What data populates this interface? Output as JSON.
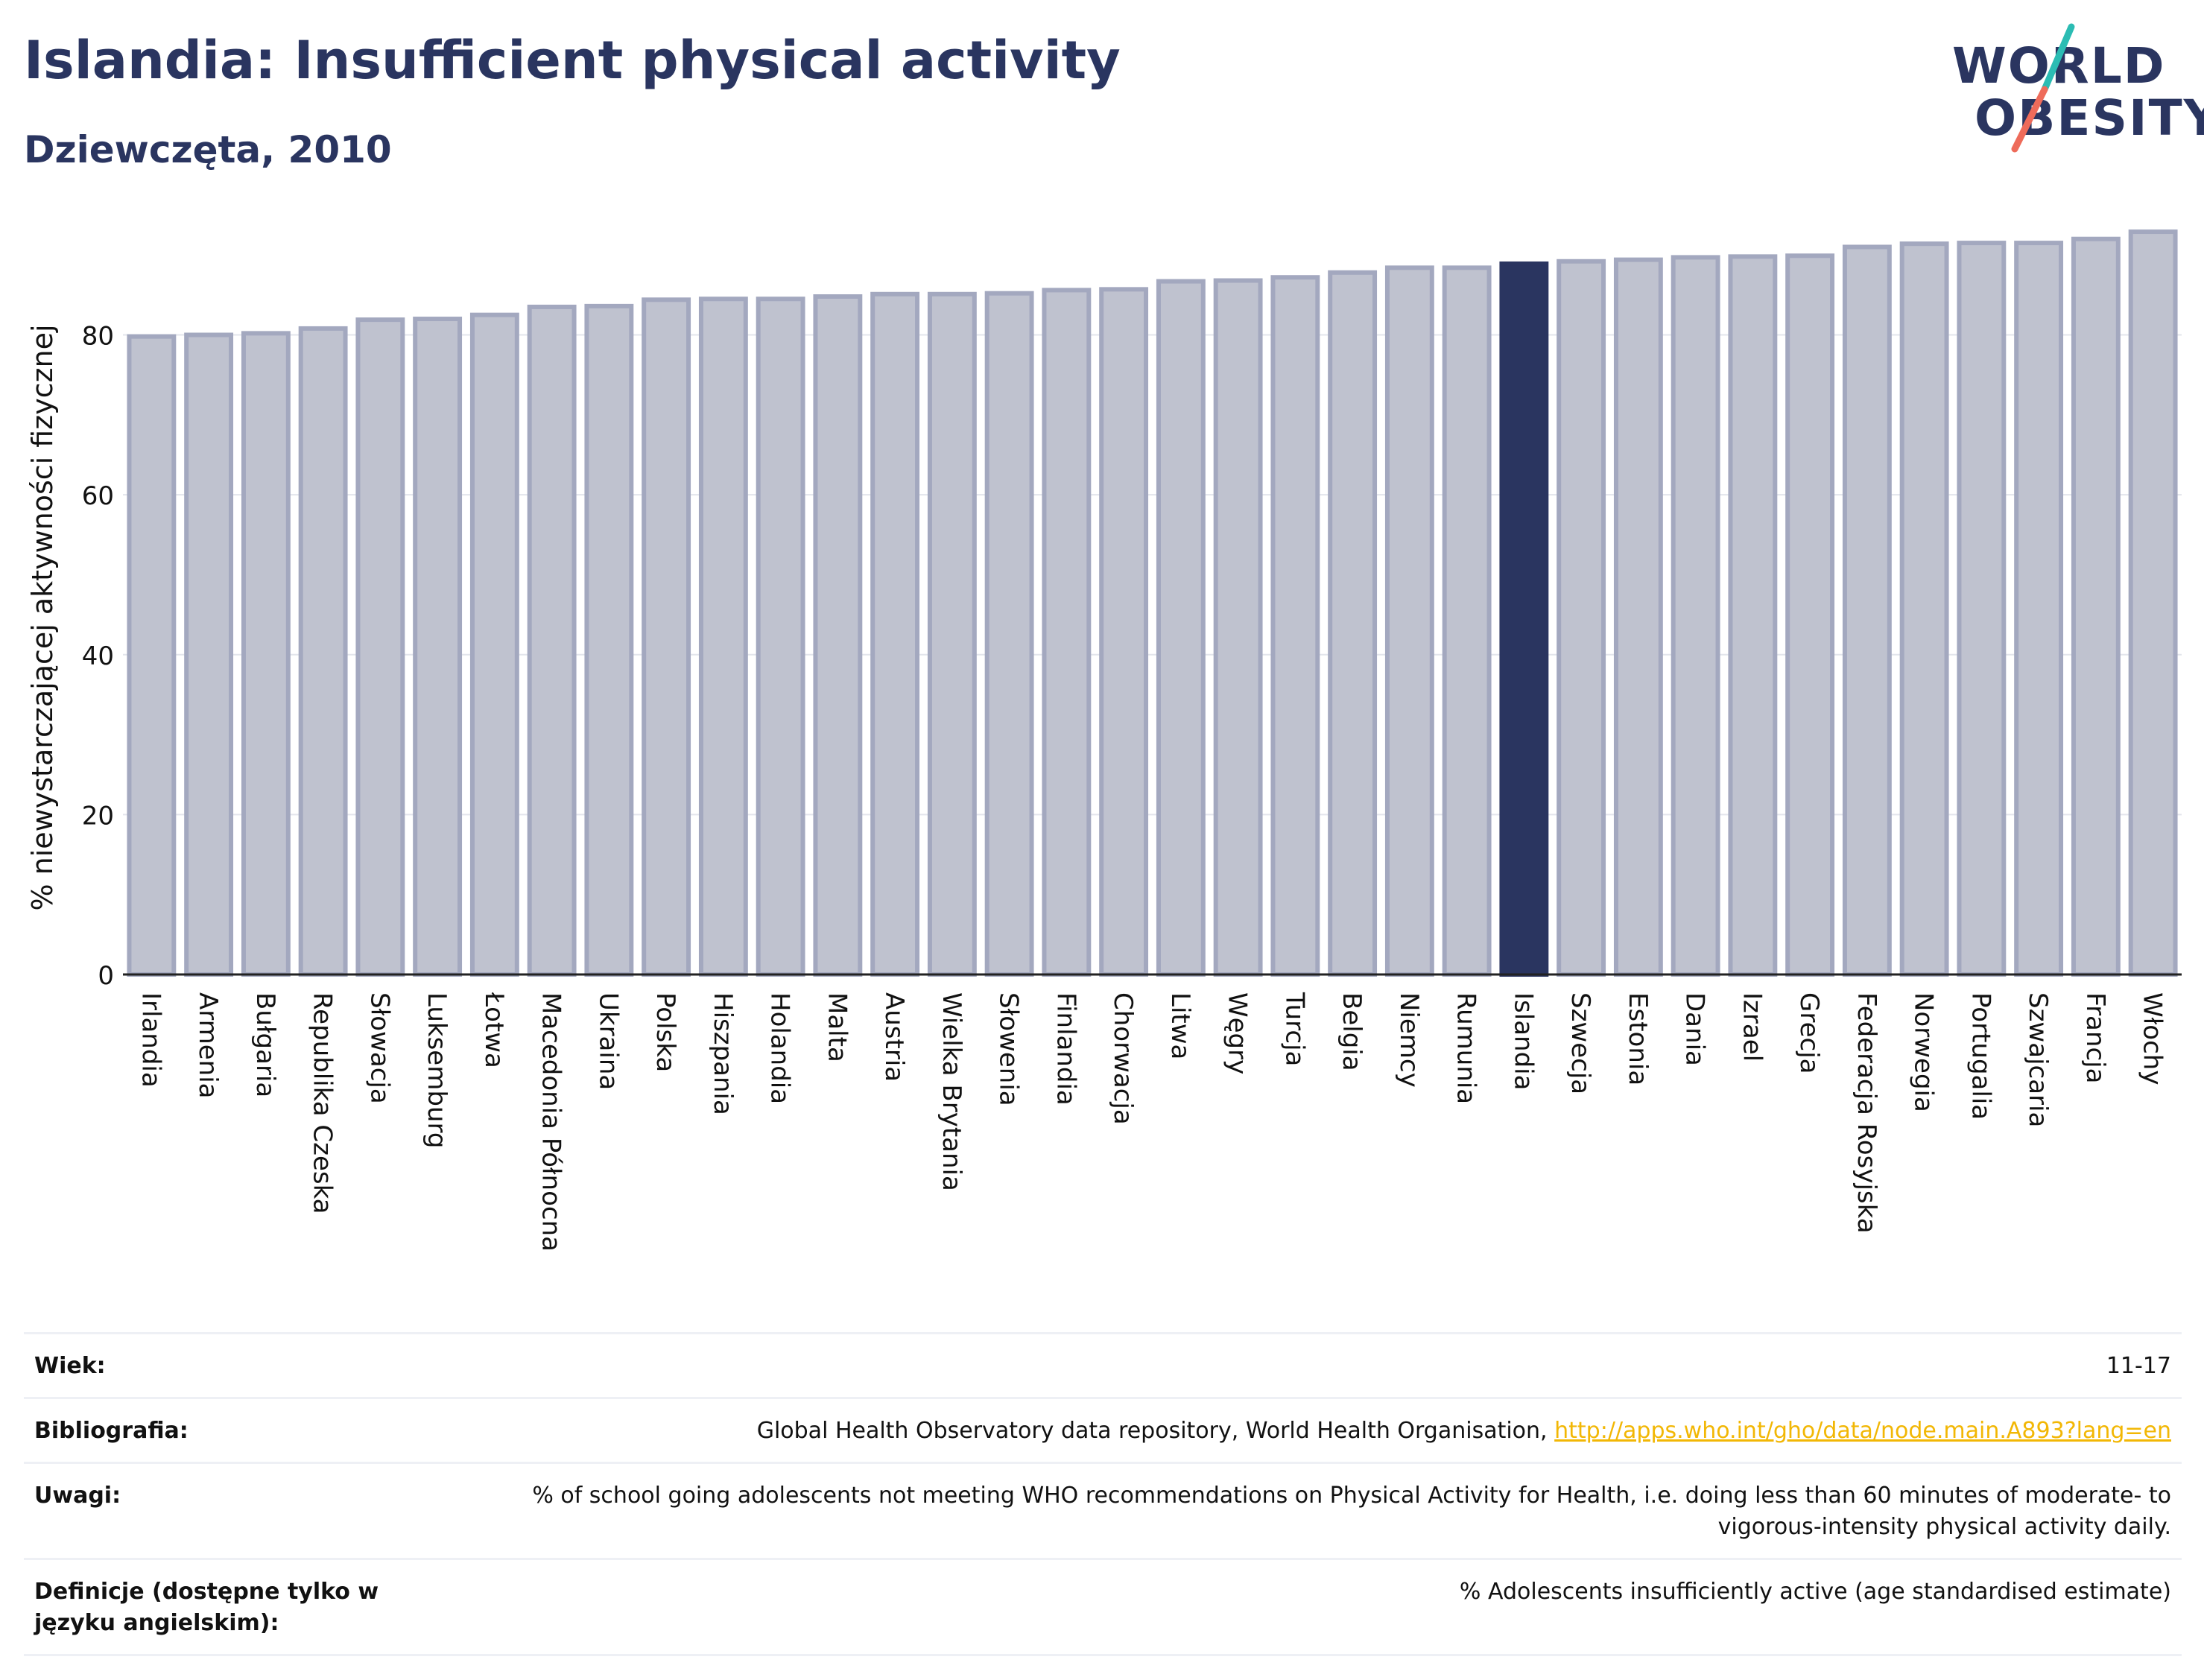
{
  "header": {
    "title": "Islandia: Insufficient physical activity",
    "subtitle": "Dziewczęta, 2010"
  },
  "logo": {
    "line1": "WORLD",
    "line2": "OBESITY"
  },
  "colors": {
    "title": "#2a3560",
    "bar_default_fill": "#bfc2cf",
    "bar_default_stroke": "#a3a8bf",
    "bar_highlight": "#2a3560",
    "link": "#f2b705",
    "logo_teal": "#2bbcb3",
    "logo_coral": "#ee6b5a"
  },
  "chart_data": {
    "type": "bar",
    "title": "Islandia: Insufficient physical activity",
    "subtitle": "Dziewczęta, 2010",
    "ylabel": "% niewystarczającej aktywności fizycznej",
    "xlabel": "",
    "ylim": [
      0,
      93
    ],
    "yticks": [
      0,
      20,
      40,
      60,
      80
    ],
    "grid": true,
    "highlight": "Islandia",
    "categories": [
      "Irlandia",
      "Armenia",
      "Bułgaria",
      "Republika Czeska",
      "Słowacja",
      "Luksemburg",
      "Łotwa",
      "Macedonia Północna",
      "Ukraina",
      "Polska",
      "Hiszpania",
      "Holandia",
      "Malta",
      "Austria",
      "Wielka Brytania",
      "Słowenia",
      "Finlandia",
      "Chorwacja",
      "Litwa",
      "Węgry",
      "Turcja",
      "Belgia",
      "Niemcy",
      "Rumunia",
      "Islandia",
      "Szwecja",
      "Estonia",
      "Dania",
      "Izrael",
      "Grecja",
      "Federacja Rosyjska",
      "Norwegia",
      "Portugalia",
      "Szwajcaria",
      "Francja",
      "Włochy"
    ],
    "values": [
      79.8,
      80.0,
      80.2,
      80.8,
      81.9,
      82.0,
      82.5,
      83.5,
      83.6,
      84.4,
      84.5,
      84.5,
      84.8,
      85.1,
      85.1,
      85.2,
      85.6,
      85.7,
      86.7,
      86.8,
      87.2,
      87.8,
      88.4,
      88.4,
      88.9,
      89.2,
      89.4,
      89.7,
      89.8,
      89.9,
      91.0,
      91.4,
      91.5,
      91.5,
      92.0,
      92.9
    ]
  },
  "info": {
    "age_label": "Wiek:",
    "age_value": "11-17",
    "bibliography_label": "Bibliografia:",
    "bibliography_text": "Global Health Observatory data repository, World Health Organisation,",
    "bibliography_link": "http://apps.who.int/gho/data/node.main.A893?lang=en",
    "notes_label": "Uwagi:",
    "notes_text": "% of school going adolescents not meeting WHO recommendations on Physical Activity for Health, i.e. doing less than 60 minutes of moderate- to vigorous-intensity physical activity daily.",
    "definitions_label": "Definicje (dostępne tylko w języku angielskim):",
    "definitions_text": "% Adolescents insufficiently active (age standardised estimate)"
  }
}
